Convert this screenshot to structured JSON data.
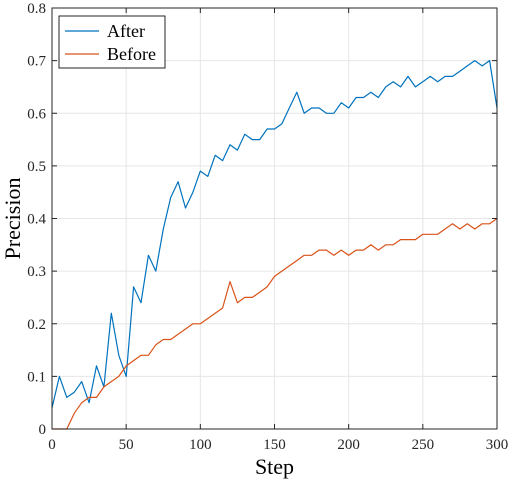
{
  "chart_data": {
    "type": "line",
    "xlabel": "Step",
    "ylabel": "Precision",
    "xlim": [
      0,
      300
    ],
    "ylim": [
      0,
      0.8
    ],
    "xticks": [
      "0",
      "50",
      "100",
      "150",
      "200",
      "250",
      "300"
    ],
    "yticks": [
      "0",
      "0.1",
      "0.2",
      "0.3",
      "0.4",
      "0.5",
      "0.6",
      "0.7",
      "0.8"
    ],
    "grid": true,
    "legend_position": "top-left",
    "series": [
      {
        "name": "After",
        "color": "#0072BD",
        "x": [
          0,
          5,
          10,
          15,
          20,
          25,
          30,
          35,
          40,
          45,
          50,
          55,
          60,
          65,
          70,
          75,
          80,
          85,
          90,
          95,
          100,
          105,
          110,
          115,
          120,
          125,
          130,
          135,
          140,
          145,
          150,
          155,
          160,
          165,
          170,
          175,
          180,
          185,
          190,
          195,
          200,
          205,
          210,
          215,
          220,
          225,
          230,
          235,
          240,
          245,
          250,
          255,
          260,
          265,
          270,
          275,
          280,
          285,
          290,
          295,
          300
        ],
        "values": [
          0.04,
          0.1,
          0.06,
          0.07,
          0.09,
          0.05,
          0.12,
          0.08,
          0.22,
          0.14,
          0.1,
          0.27,
          0.24,
          0.33,
          0.3,
          0.38,
          0.44,
          0.47,
          0.42,
          0.45,
          0.49,
          0.48,
          0.52,
          0.51,
          0.54,
          0.53,
          0.56,
          0.55,
          0.55,
          0.57,
          0.57,
          0.58,
          0.61,
          0.64,
          0.6,
          0.61,
          0.61,
          0.6,
          0.6,
          0.62,
          0.61,
          0.63,
          0.63,
          0.64,
          0.63,
          0.65,
          0.66,
          0.65,
          0.67,
          0.65,
          0.66,
          0.67,
          0.66,
          0.67,
          0.67,
          0.68,
          0.69,
          0.7,
          0.69,
          0.7,
          0.61
        ]
      },
      {
        "name": "Before",
        "color": "#D95319",
        "x": [
          0,
          5,
          10,
          15,
          20,
          25,
          30,
          35,
          40,
          45,
          50,
          55,
          60,
          65,
          70,
          75,
          80,
          85,
          90,
          95,
          100,
          105,
          110,
          115,
          120,
          125,
          130,
          135,
          140,
          145,
          150,
          155,
          160,
          165,
          170,
          175,
          180,
          185,
          190,
          195,
          200,
          205,
          210,
          215,
          220,
          225,
          230,
          235,
          240,
          245,
          250,
          255,
          260,
          265,
          270,
          275,
          280,
          285,
          290,
          295,
          300
        ],
        "values": [
          0,
          0,
          0,
          0.03,
          0.05,
          0.06,
          0.06,
          0.08,
          0.09,
          0.1,
          0.12,
          0.13,
          0.14,
          0.14,
          0.16,
          0.17,
          0.17,
          0.18,
          0.19,
          0.2,
          0.2,
          0.21,
          0.22,
          0.23,
          0.28,
          0.24,
          0.25,
          0.25,
          0.26,
          0.27,
          0.29,
          0.3,
          0.31,
          0.32,
          0.33,
          0.33,
          0.34,
          0.34,
          0.33,
          0.34,
          0.33,
          0.34,
          0.34,
          0.35,
          0.34,
          0.35,
          0.35,
          0.36,
          0.36,
          0.36,
          0.37,
          0.37,
          0.37,
          0.38,
          0.39,
          0.38,
          0.39,
          0.38,
          0.39,
          0.39,
          0.4
        ]
      }
    ]
  }
}
